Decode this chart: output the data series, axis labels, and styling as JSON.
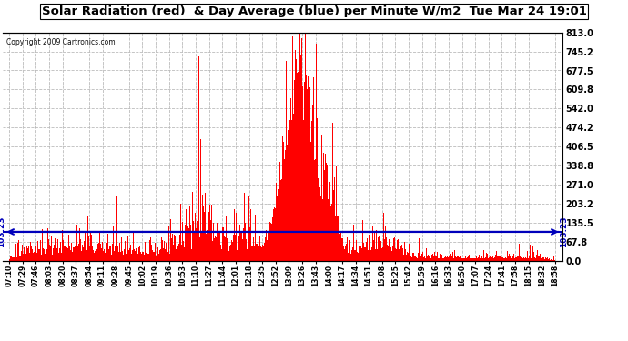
{
  "title": "Solar Radiation (red)  & Day Average (blue) per Minute W/m2  Tue Mar 24 19:01",
  "copyright": "Copyright 2009 Cartronics.com",
  "y_max": 813.0,
  "y_min": 0.0,
  "y_ticks": [
    0.0,
    67.8,
    135.5,
    203.2,
    271.0,
    338.8,
    406.5,
    474.2,
    542.0,
    609.8,
    677.5,
    745.2,
    813.0
  ],
  "average_value": 103.23,
  "bar_color": "#ff0000",
  "avg_line_color": "#0000bb",
  "avg_label_color": "#0000bb",
  "background_color": "#ffffff",
  "grid_color": "#bbbbbb",
  "title_color": "#000000",
  "x_tick_labels": [
    "07:10",
    "07:29",
    "07:46",
    "08:03",
    "08:20",
    "08:37",
    "08:54",
    "09:11",
    "09:28",
    "09:45",
    "10:02",
    "10:19",
    "10:36",
    "10:53",
    "11:10",
    "11:27",
    "11:44",
    "12:01",
    "12:18",
    "12:35",
    "12:52",
    "13:09",
    "13:26",
    "13:43",
    "14:00",
    "14:17",
    "14:34",
    "14:51",
    "15:08",
    "15:25",
    "15:42",
    "15:59",
    "16:16",
    "16:33",
    "16:50",
    "17:07",
    "17:24",
    "17:41",
    "17:58",
    "18:15",
    "18:32",
    "18:58"
  ],
  "num_minutes": 708,
  "seed": 42
}
